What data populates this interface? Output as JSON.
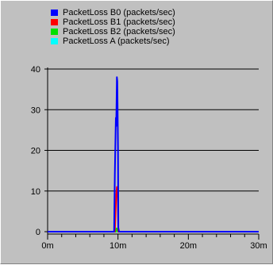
{
  "colors": {
    "background": "#c0c0c0",
    "gridline": "#000000",
    "axis": "#000000"
  },
  "chart_data": {
    "type": "line",
    "title": "",
    "xlabel": "",
    "ylabel": "",
    "xlim": [
      0,
      30
    ],
    "ylim": [
      0,
      40
    ],
    "x_unit_suffix": "m",
    "x_ticks": [
      0,
      10,
      20,
      30
    ],
    "x_tick_labels": [
      "0m",
      "10m",
      "20m",
      "30m"
    ],
    "y_ticks": [
      0,
      10,
      20,
      30,
      40
    ],
    "y_tick_labels": [
      "0",
      "10",
      "20",
      "30",
      "40"
    ],
    "grid": "horizontal",
    "legend_position": "top",
    "series": [
      {
        "name": "PacketLoss B0 (packets/sec)",
        "color": "#0000ff",
        "x": [
          0,
          9.3,
          9.45,
          9.55,
          9.65,
          9.7,
          9.75,
          9.8,
          9.85,
          9.9,
          9.95,
          10.0,
          10.05,
          10.15,
          30
        ],
        "y": [
          0,
          0,
          0,
          14,
          24,
          28,
          26,
          32,
          38,
          37,
          30,
          20,
          1,
          0,
          0
        ]
      },
      {
        "name": "PacketLoss B1 (packets/sec)",
        "color": "#ff0000",
        "x": [
          0,
          9.55,
          9.65,
          9.75,
          9.85,
          9.95,
          10.05,
          30
        ],
        "y": [
          0,
          0,
          5,
          9,
          11,
          10,
          0,
          0
        ]
      },
      {
        "name": "PacketLoss B2 (packets/sec)",
        "color": "#00e000",
        "x": [
          0,
          9.7,
          9.8,
          9.9,
          10.0,
          30
        ],
        "y": [
          0,
          0,
          0.8,
          0.5,
          0,
          0
        ]
      },
      {
        "name": "PacketLoss A (packets/sec)",
        "color": "#00ffff",
        "x": [
          0,
          30
        ],
        "y": [
          0,
          0
        ]
      }
    ]
  }
}
